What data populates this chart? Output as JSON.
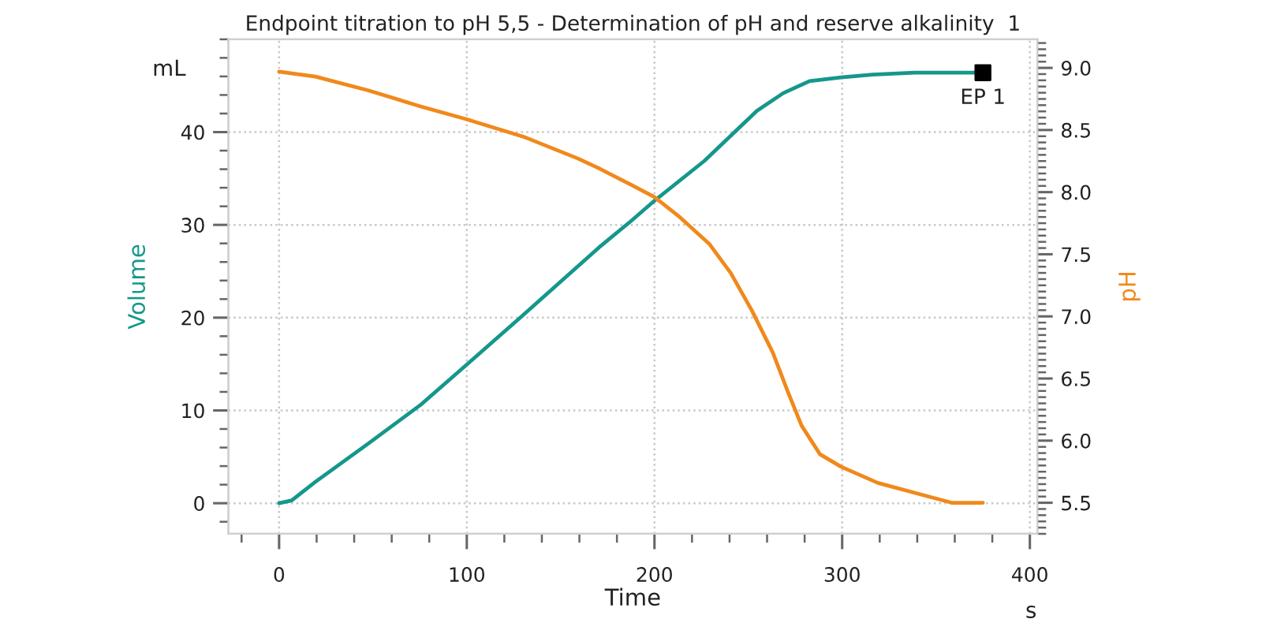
{
  "chart_data": {
    "type": "line",
    "title": "Endpoint titration to pH 5,5 - Determination of pH and reserve alkalinity  1",
    "xlabel": "Time",
    "ylabel": "Volume",
    "y2label": "pH",
    "annotations": [
      "mL",
      "s"
    ],
    "xlim": [
      -27,
      404
    ],
    "xticks": [
      0,
      100,
      200,
      300,
      400
    ],
    "ylim": [
      -3.3,
      50
    ],
    "yticks": [
      0,
      10,
      20,
      30,
      40
    ],
    "y2lim": [
      5.25,
      9.23
    ],
    "y2ticks": [
      5.5,
      {
        "value": 6,
        "label": "6.0"
      },
      6.5,
      {
        "value": 7,
        "label": "7.0"
      },
      7.5,
      {
        "value": 8,
        "label": "8.0"
      },
      8.5,
      {
        "value": 9,
        "label": "9.0"
      }
    ],
    "grid": true,
    "line_style": "solid",
    "series": [
      {
        "color": "#15978b",
        "x": [
          0,
          6.7,
          19.3,
          47.3,
          75.4,
          99.2,
          128.5,
          170.6,
          187.4,
          200,
          226.6,
          254.6,
          268.6,
          282.6,
          299.4,
          316.2,
          338.7,
          375
        ],
        "values": [
          0,
          0.3,
          2.3,
          6.4,
          10.6,
          14.8,
          20,
          27.6,
          30.4,
          32.6,
          36.9,
          42.3,
          44.2,
          45.5,
          45.9,
          46.2,
          46.4,
          46.4
        ]
      },
      {
        "axis": "y2",
        "color": "#f0891c",
        "x": [
          0,
          19.3,
          47.3,
          75.4,
          99.2,
          131.3,
          159.3,
          170.6,
          187.4,
          200,
          212.6,
          229.4,
          240.6,
          251.8,
          263,
          271.4,
          278.4,
          288.2,
          299.4,
          319,
          338.7,
          358.3,
          375
        ],
        "values": [
          8.97,
          8.93,
          8.82,
          8.69,
          8.59,
          8.44,
          8.27,
          8.19,
          8.06,
          7.96,
          7.81,
          7.58,
          7.35,
          7.05,
          6.71,
          6.38,
          6.12,
          5.89,
          5.79,
          5.66,
          5.58,
          5.5,
          5.5
        ]
      },
      {
        "type": "scatter",
        "name": "EP 1",
        "color": "#000000",
        "marker": "square",
        "x": [
          375
        ],
        "values": [
          46.4
        ]
      }
    ]
  }
}
